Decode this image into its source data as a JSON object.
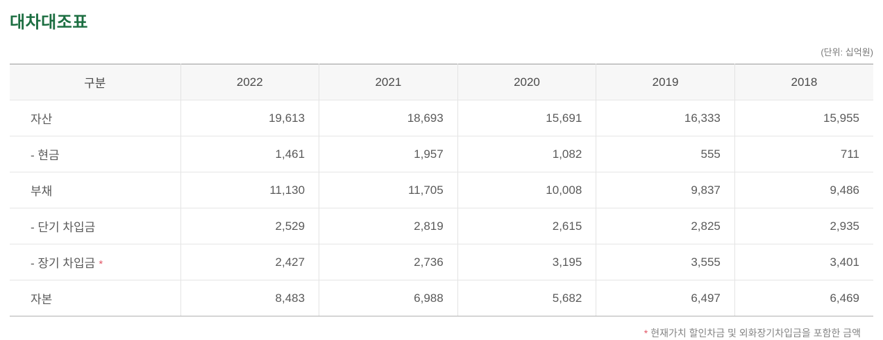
{
  "page": {
    "title": "대차대조표",
    "unit_label": "(단위: 십억원)"
  },
  "table": {
    "columns": [
      "구분",
      "2022",
      "2021",
      "2020",
      "2019",
      "2018"
    ],
    "rows": [
      {
        "label": "자산",
        "asterisk": false,
        "values": [
          "19,613",
          "18,693",
          "15,691",
          "16,333",
          "15,955"
        ]
      },
      {
        "label": "- 현금",
        "asterisk": false,
        "values": [
          "1,461",
          "1,957",
          "1,082",
          "555",
          "711"
        ]
      },
      {
        "label": "부채",
        "asterisk": false,
        "values": [
          "11,130",
          "11,705",
          "10,008",
          "9,837",
          "9,486"
        ]
      },
      {
        "label": "- 단기 차입금",
        "asterisk": false,
        "values": [
          "2,529",
          "2,819",
          "2,615",
          "2,825",
          "2,935"
        ]
      },
      {
        "label": "- 장기 차입금",
        "asterisk": true,
        "values": [
          "2,427",
          "2,736",
          "3,195",
          "3,555",
          "3,401"
        ]
      },
      {
        "label": "자본",
        "asterisk": false,
        "values": [
          "8,483",
          "6,988",
          "5,682",
          "6,497",
          "6,469"
        ]
      }
    ]
  },
  "footnote": {
    "marker": "*",
    "text": "현재가치 할인차금 및 외화장기차입금을 포함한 금액"
  },
  "colors": {
    "title_green": "#1c6e41",
    "asterisk_red": "#e25767",
    "header_bg": "#f7f7f7",
    "table_top_border": "#999999",
    "row_border": "#e5e5e5"
  }
}
